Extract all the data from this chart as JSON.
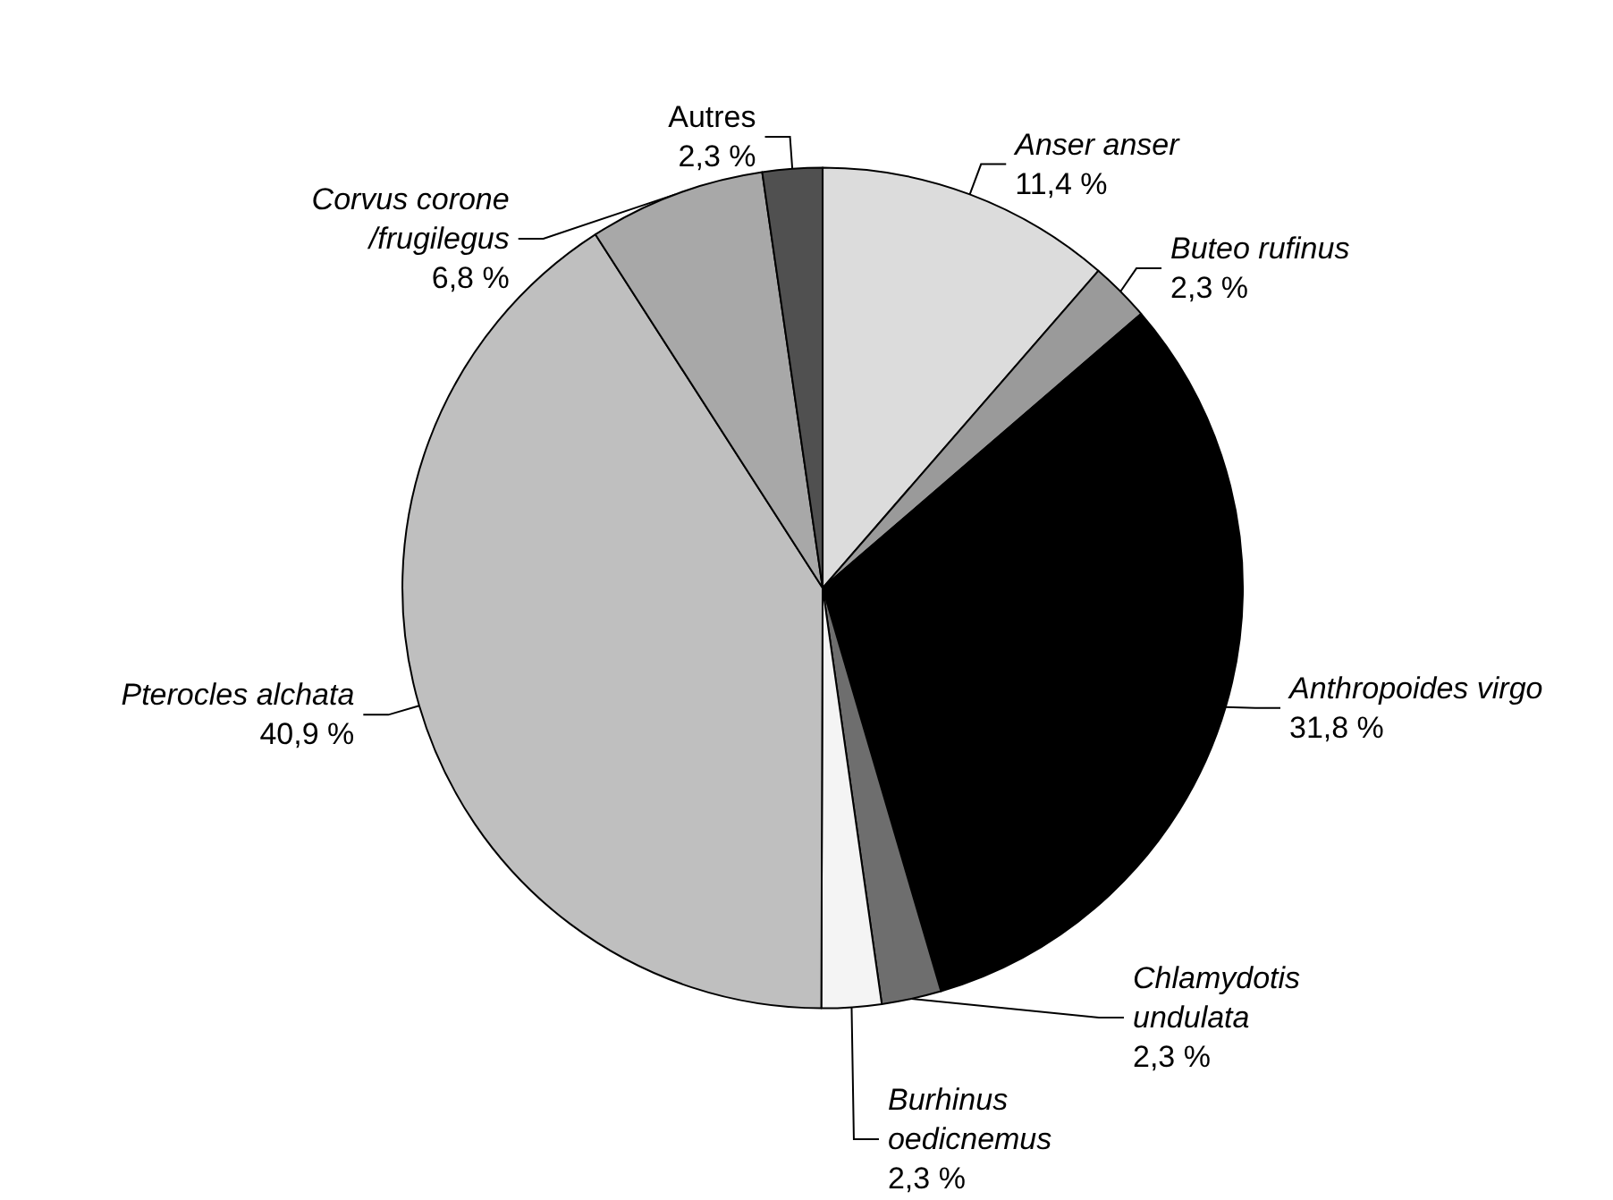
{
  "chart_data": {
    "type": "pie",
    "categories": [
      "Anser anser",
      "Buteo rufinus",
      "Anthropoides virgo",
      "Chlamydotis\nundulata",
      "Burhinus\noedicnemus",
      "Pterocles alchata",
      "Corvus corone\n/frugilegus",
      "Autres"
    ],
    "values": [
      11.4,
      2.3,
      31.8,
      2.3,
      2.3,
      40.9,
      6.8,
      2.3
    ],
    "value_labels": [
      "11,4 %",
      "2,3 %",
      "31,8 %",
      "2,3 %",
      "2,3 %",
      "40,9 %",
      "6,8 %",
      "2,3 %"
    ],
    "colors": [
      "#dcdcdc",
      "#9a9a9a",
      "#000000",
      "#6e6e6e",
      "#f4f4f4",
      "#bfbfbf",
      "#a8a8a8",
      "#505050"
    ],
    "legend": false
  }
}
